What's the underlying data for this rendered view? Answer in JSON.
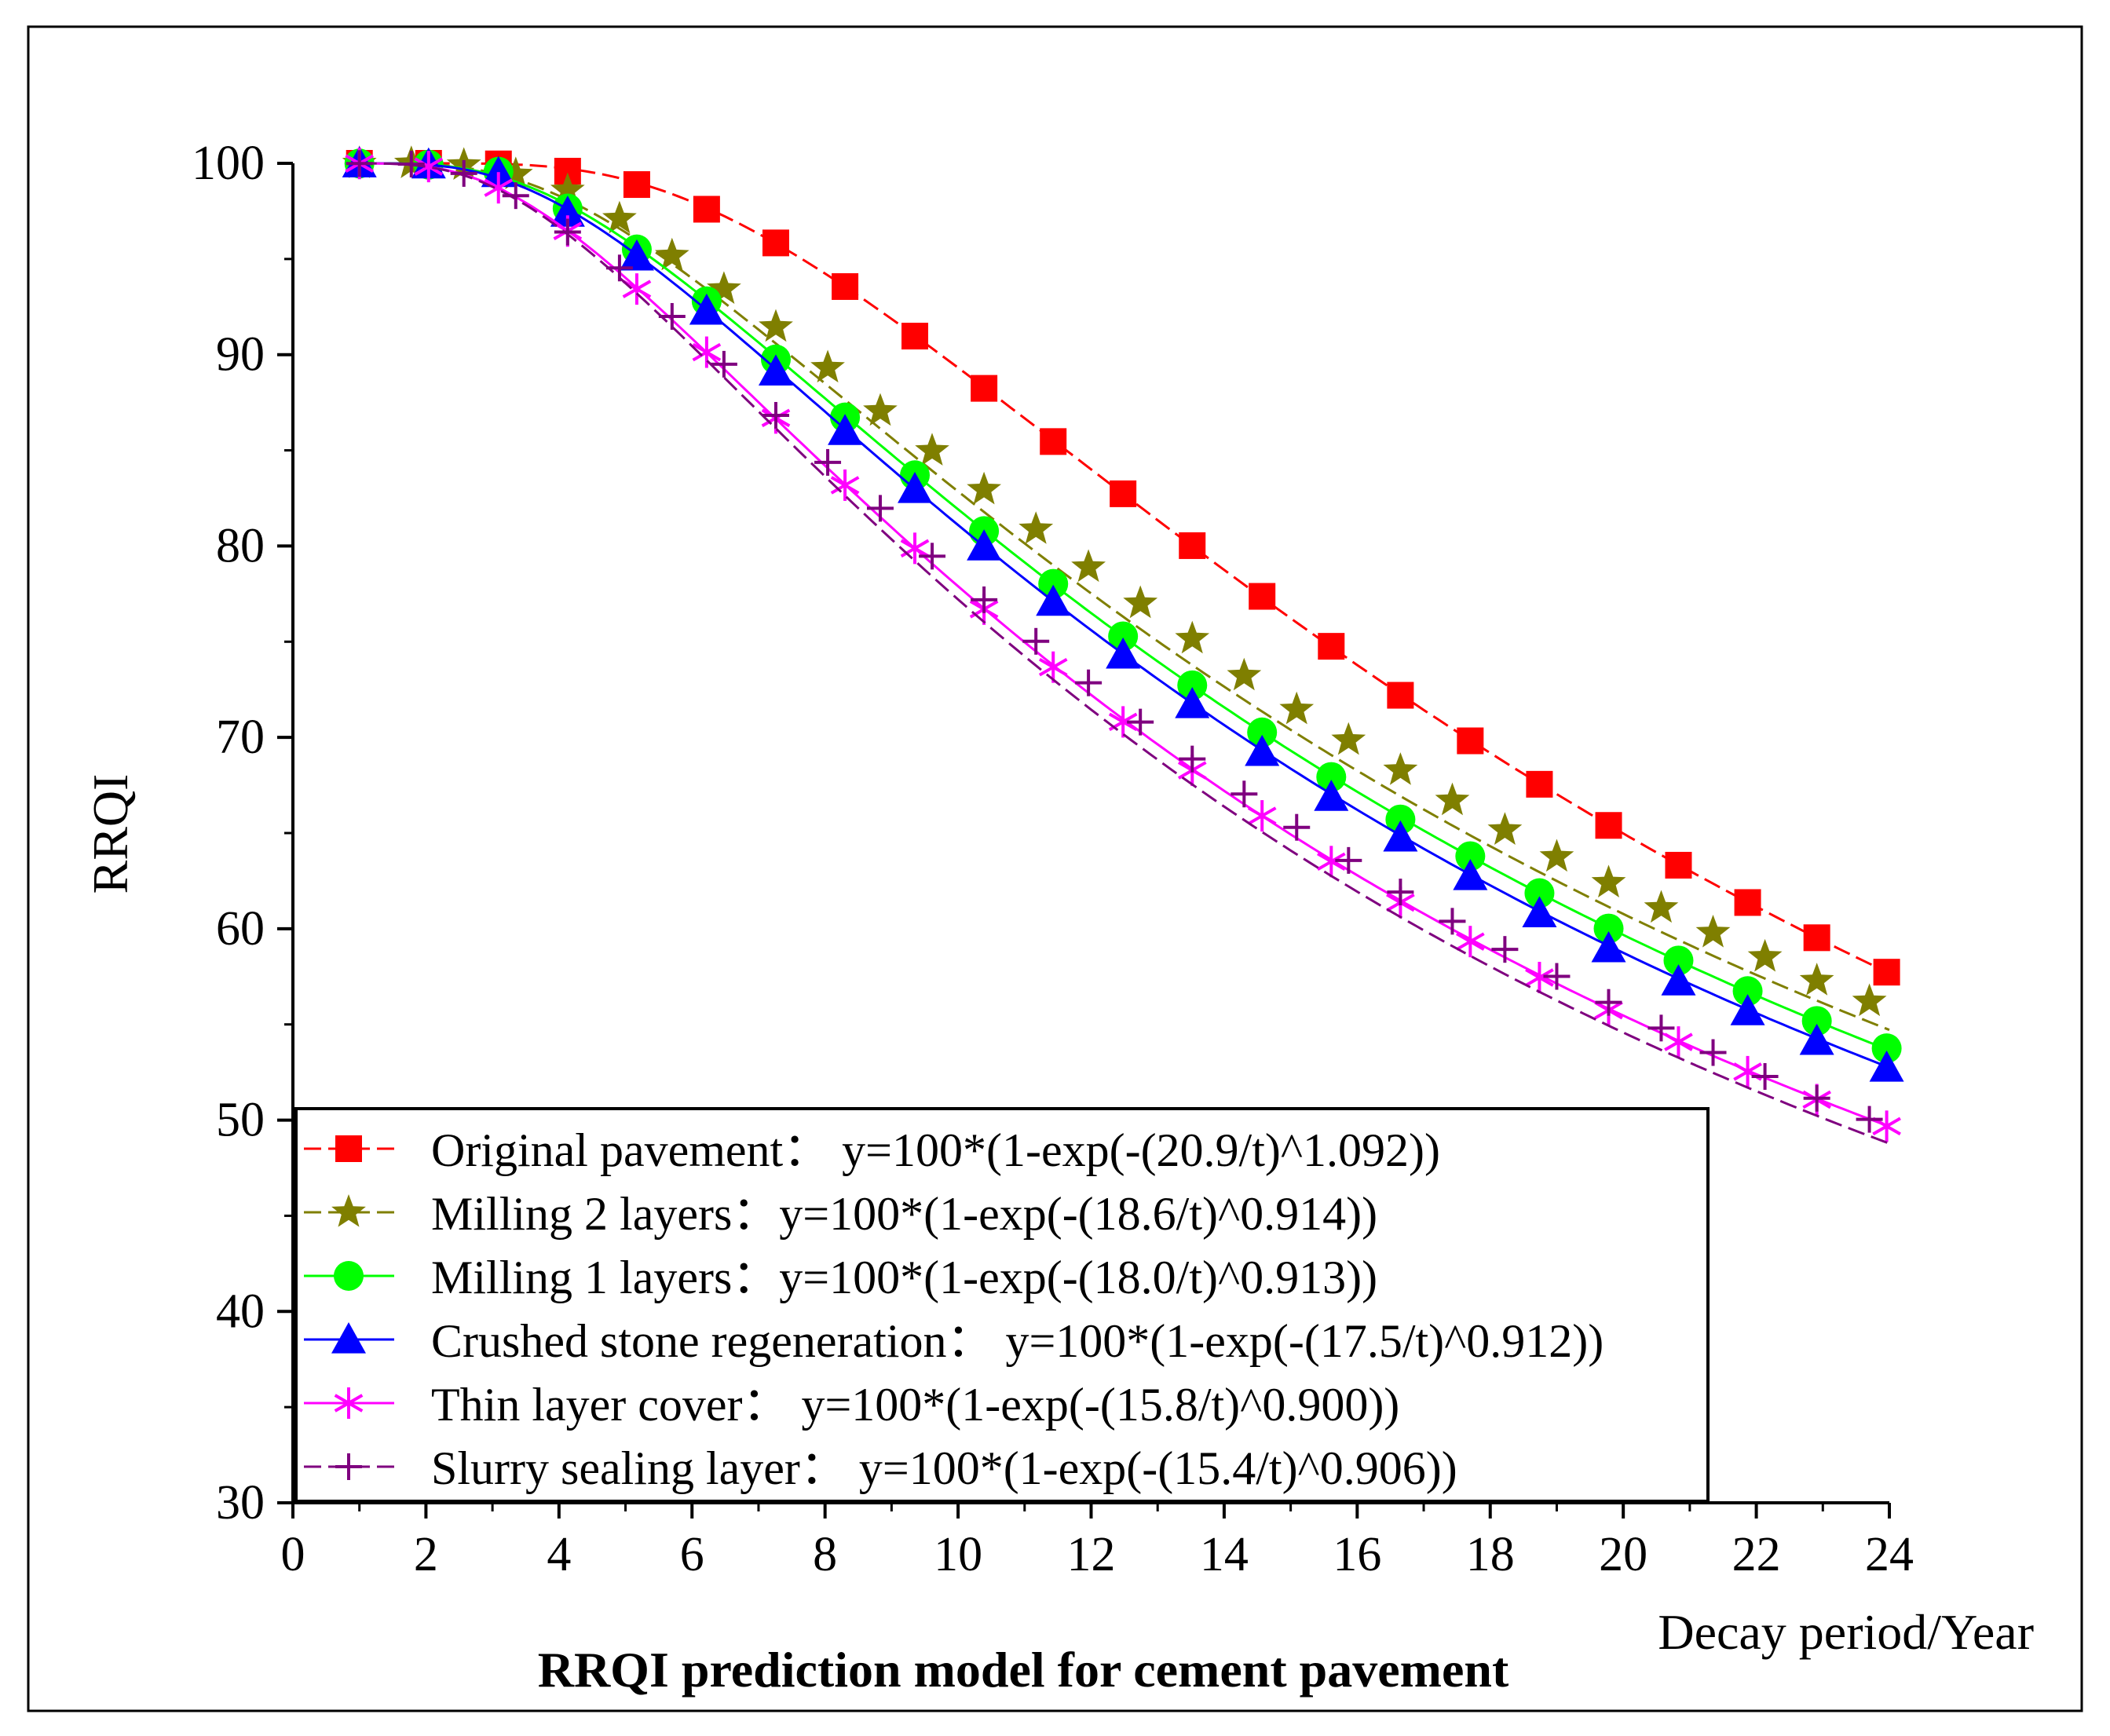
{
  "chart_data": {
    "type": "line",
    "title": "RRQI prediction model for cement pavement",
    "xlabel": "Decay period/Year",
    "ylabel": "RRQI",
    "xlim": [
      0,
      24
    ],
    "ylim": [
      30,
      100
    ],
    "xticks": [
      0,
      2,
      4,
      6,
      8,
      10,
      12,
      14,
      16,
      18,
      20,
      22,
      24
    ],
    "yticks": [
      30,
      40,
      50,
      60,
      70,
      80,
      90,
      100
    ],
    "grid": false,
    "legend_position": "bottom-left",
    "series": [
      {
        "name": "Original pavement",
        "label": "Original pavement：  y=100*(1-exp(-(20.9/t)^1.092))",
        "color": "#ff0000",
        "marker": "square",
        "dashed": true,
        "params": {
          "a": 20.9,
          "b": 1.092
        },
        "x": [
          1.0,
          2.04,
          3.09,
          4.13,
          5.17,
          6.22,
          7.26,
          8.3,
          9.35,
          10.39,
          11.43,
          12.48,
          13.52,
          14.57,
          15.61,
          16.65,
          17.7,
          18.74,
          19.78,
          20.83,
          21.87,
          22.91,
          23.96
        ],
        "values": [
          100.0,
          100.0,
          99.97,
          99.59,
          98.89,
          97.6,
          95.84,
          93.56,
          90.97,
          88.24,
          85.46,
          82.73,
          80.02,
          77.37,
          74.76,
          72.2,
          69.82,
          67.55,
          65.4,
          63.32,
          61.37,
          59.53,
          57.73
        ]
      },
      {
        "name": "Milling 2 layers",
        "label": "Milling 2 layers：y=100*(1-exp(-(18.6/t)^0.914))",
        "color": "#7f7f00",
        "marker": "star",
        "dashed": true,
        "params": {
          "a": 18.6,
          "b": 0.914
        },
        "x": [
          1.0,
          1.78,
          2.57,
          3.35,
          4.13,
          4.91,
          5.7,
          6.48,
          7.26,
          8.04,
          8.83,
          9.61,
          10.39,
          11.17,
          11.96,
          12.74,
          13.52,
          14.3,
          15.09,
          15.87,
          16.65,
          17.43,
          18.22,
          19.0,
          19.78,
          20.57,
          21.35,
          22.13,
          22.91,
          23.7
        ],
        "values": [
          99.99,
          99.99,
          99.9,
          99.41,
          98.58,
          97.1,
          95.17,
          93.42,
          91.44,
          89.31,
          87.05,
          84.97,
          82.94,
          80.87,
          78.89,
          77.0,
          75.15,
          73.22,
          71.45,
          69.85,
          68.28,
          66.7,
          65.15,
          63.75,
          62.4,
          61.08,
          59.79,
          58.52,
          57.28,
          56.2
        ]
      },
      {
        "name": "Milling 1 layers",
        "label": "Milling 1 layers：y=100*(1-exp(-(18.0/t)^0.913))",
        "color": "#00ff00",
        "marker": "circle",
        "dashed": false,
        "params": {
          "a": 18.0,
          "b": 0.913
        },
        "x": [
          1.0,
          2.04,
          3.09,
          4.13,
          5.17,
          6.22,
          7.26,
          8.3,
          9.35,
          10.39,
          11.43,
          12.48,
          13.52,
          14.57,
          15.61,
          16.65,
          17.7,
          18.74,
          19.78,
          20.83,
          21.87,
          22.91,
          23.96
        ],
        "values": [
          99.99,
          99.93,
          99.56,
          97.64,
          95.5,
          92.79,
          89.75,
          86.72,
          83.7,
          80.78,
          78.02,
          75.28,
          72.72,
          70.26,
          67.93,
          65.71,
          63.79,
          61.86,
          60.01,
          58.34,
          56.74,
          55.18,
          53.75
        ]
      },
      {
        "name": "Crushed stone regeneration",
        "label": "Crushed stone regeneration：  y=100*(1-exp(-(17.5/t)^0.912))",
        "color": "#0000ff",
        "marker": "triangle",
        "dashed": false,
        "params": {
          "a": 17.5,
          "b": 0.912
        },
        "x": [
          1.0,
          2.04,
          3.09,
          4.13,
          5.17,
          6.22,
          7.26,
          8.3,
          9.35,
          10.39,
          11.43,
          12.48,
          13.52,
          14.57,
          15.61,
          16.65,
          17.7,
          18.74,
          19.78,
          20.83,
          21.87,
          22.91,
          23.96
        ],
        "values": [
          99.99,
          99.93,
          99.48,
          97.41,
          95.12,
          92.29,
          89.11,
          86.0,
          82.97,
          79.97,
          77.08,
          74.32,
          71.73,
          69.23,
          66.88,
          64.76,
          62.74,
          60.8,
          58.97,
          57.24,
          55.68,
          54.13,
          52.73
        ]
      },
      {
        "name": "Thin layer cover",
        "label": "Thin layer cover：  y=100*(1-exp(-(15.8/t)^0.900))",
        "color": "#ff00ff",
        "marker": "asterisk",
        "dashed": false,
        "params": {
          "a": 15.8,
          "b": 0.9
        },
        "x": [
          1.0,
          2.04,
          3.09,
          4.13,
          5.17,
          6.22,
          7.26,
          8.3,
          9.35,
          10.39,
          11.43,
          12.48,
          13.52,
          14.57,
          15.61,
          16.65,
          17.7,
          18.74,
          19.78,
          20.83,
          21.87,
          22.91,
          23.96
        ],
        "values": [
          99.99,
          99.83,
          98.72,
          96.46,
          93.43,
          90.13,
          86.69,
          83.18,
          79.88,
          76.7,
          73.67,
          70.81,
          68.28,
          65.9,
          63.51,
          61.37,
          59.33,
          57.45,
          55.74,
          54.08,
          52.53,
          51.07,
          49.68
        ]
      },
      {
        "name": "Slurry sealing layer",
        "label": "Slurry sealing layer：  y=100*(1-exp(-(15.4/t)^0.906))",
        "color": "#7f007f",
        "marker": "plus",
        "dashed": true,
        "params": {
          "a": 15.4,
          "b": 0.906
        },
        "x": [
          1.0,
          1.78,
          2.57,
          3.35,
          4.13,
          4.91,
          5.7,
          6.48,
          7.26,
          8.04,
          8.83,
          9.61,
          10.39,
          11.17,
          11.96,
          12.74,
          13.52,
          14.3,
          15.09,
          15.87,
          16.65,
          17.43,
          18.22,
          19.0,
          19.78,
          20.57,
          21.35,
          22.13,
          22.91,
          23.7
        ],
        "values": [
          99.99,
          99.96,
          99.47,
          98.31,
          96.41,
          94.53,
          92.0,
          89.5,
          86.83,
          84.37,
          81.97,
          79.47,
          77.19,
          75.02,
          72.85,
          70.8,
          68.87,
          67.04,
          65.3,
          63.57,
          61.92,
          60.39,
          58.92,
          57.51,
          56.15,
          54.81,
          53.53,
          52.28,
          51.14,
          50.04
        ]
      }
    ]
  }
}
